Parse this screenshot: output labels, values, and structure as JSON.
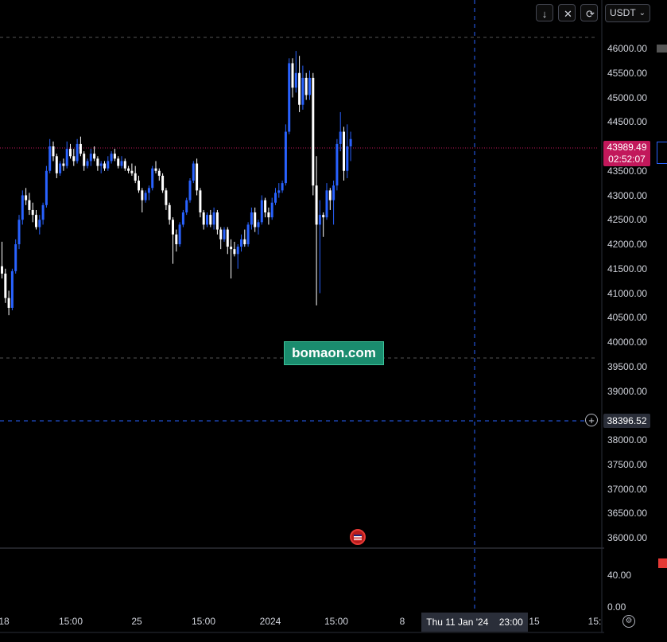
{
  "toolbar": {
    "arrow_down": "↓",
    "collapse": "✕",
    "refresh": "⟳",
    "currency": "USDT",
    "currency_chevron": "⌄"
  },
  "price_axis": {
    "ticks": [
      "46000.00",
      "45500.00",
      "45000.00",
      "44500.00",
      "43500.00",
      "43000.00",
      "42500.00",
      "42000.00",
      "41500.00",
      "41000.00",
      "40500.00",
      "40000.00",
      "39500.00",
      "39000.00",
      "38000.00",
      "37500.00",
      "37000.00",
      "36500.00",
      "36000.00"
    ]
  },
  "indicator_axis": {
    "ticks": [
      "40.00",
      "0.00"
    ]
  },
  "time_axis": {
    "labels": [
      "18",
      "15:00",
      "25",
      "15:00",
      "2024",
      "15:00",
      "8",
      "15",
      "15:"
    ]
  },
  "last_price": {
    "value": "43989.49",
    "countdown": "02:52:07"
  },
  "crosshair": {
    "price": "38396.52",
    "date": "Thu 11 Jan '24",
    "time": "23:00"
  },
  "watermark": "bomaon.com",
  "colors": {
    "up": "#2962ff",
    "down": "#ffffff",
    "last_price": "#c2185b",
    "watermark_bg": "#1a8c6e",
    "crosshair": "#2962ff"
  },
  "chart_data": {
    "type": "candlestick",
    "ylim": [
      35700,
      46700
    ],
    "x_labels": [
      "18",
      "15:00",
      "25",
      "15:00",
      "2024",
      "15:00",
      "8"
    ],
    "candles": [
      [
        41550,
        42050,
        41300,
        41400
      ],
      [
        41400,
        41500,
        40800,
        40900
      ],
      [
        40900,
        41050,
        40550,
        40700
      ],
      [
        40700,
        41500,
        40650,
        41450
      ],
      [
        41450,
        42100,
        41400,
        42000
      ],
      [
        42000,
        42600,
        41900,
        42500
      ],
      [
        42500,
        43100,
        42400,
        43000
      ],
      [
        43000,
        43150,
        42800,
        42900
      ],
      [
        42900,
        43050,
        42600,
        42700
      ],
      [
        42700,
        42850,
        42450,
        42600
      ],
      [
        42600,
        42700,
        42300,
        42350
      ],
      [
        42350,
        42600,
        42200,
        42500
      ],
      [
        42500,
        42850,
        42400,
        42800
      ],
      [
        42800,
        43600,
        42750,
        43500
      ],
      [
        43500,
        44150,
        43450,
        44000
      ],
      [
        44000,
        44100,
        43700,
        43800
      ],
      [
        43800,
        43850,
        43350,
        43450
      ],
      [
        43450,
        43700,
        43400,
        43650
      ],
      [
        43650,
        43750,
        43500,
        43600
      ],
      [
        43600,
        44100,
        43550,
        43950
      ],
      [
        43950,
        44050,
        43750,
        43800
      ],
      [
        43800,
        43950,
        43600,
        43700
      ],
      [
        43700,
        44150,
        43650,
        44050
      ],
      [
        44050,
        44200,
        43800,
        43850
      ],
      [
        43850,
        43900,
        43500,
        43600
      ],
      [
        43600,
        43750,
        43550,
        43700
      ],
      [
        43700,
        43950,
        43600,
        43850
      ],
      [
        43850,
        44000,
        43700,
        43750
      ],
      [
        43750,
        43800,
        43500,
        43600
      ],
      [
        43600,
        43700,
        43450,
        43650
      ],
      [
        43650,
        43700,
        43500,
        43550
      ],
      [
        43550,
        43800,
        43500,
        43700
      ],
      [
        43700,
        43900,
        43650,
        43850
      ],
      [
        43850,
        43950,
        43700,
        43750
      ],
      [
        43750,
        43800,
        43550,
        43600
      ],
      [
        43600,
        43800,
        43550,
        43700
      ],
      [
        43700,
        43750,
        43500,
        43550
      ],
      [
        43550,
        43600,
        43450,
        43500
      ],
      [
        43500,
        43650,
        43400,
        43450
      ],
      [
        43450,
        43600,
        43250,
        43300
      ],
      [
        43300,
        43400,
        43050,
        43100
      ],
      [
        43100,
        43150,
        42650,
        42900
      ],
      [
        42900,
        43100,
        42850,
        43050
      ],
      [
        43050,
        43200,
        42900,
        43150
      ],
      [
        43150,
        43600,
        43100,
        43550
      ],
      [
        43550,
        43700,
        43450,
        43500
      ],
      [
        43500,
        43550,
        43300,
        43400
      ],
      [
        43400,
        43450,
        43050,
        43100
      ],
      [
        43100,
        43150,
        42700,
        42800
      ],
      [
        42800,
        42850,
        42400,
        42500
      ],
      [
        42500,
        42550,
        41600,
        42200
      ],
      [
        42200,
        42300,
        41850,
        42000
      ],
      [
        42000,
        42450,
        41950,
        42400
      ],
      [
        42400,
        42700,
        42350,
        42650
      ],
      [
        42650,
        42950,
        42600,
        42900
      ],
      [
        42900,
        43350,
        42850,
        43300
      ],
      [
        43300,
        43700,
        43250,
        43650
      ],
      [
        43650,
        43750,
        43000,
        43100
      ],
      [
        43100,
        43150,
        42550,
        42650
      ],
      [
        42650,
        42700,
        42300,
        42400
      ],
      [
        42400,
        42650,
        42350,
        42600
      ],
      [
        42600,
        42700,
        42350,
        42400
      ],
      [
        42400,
        42750,
        42300,
        42650
      ],
      [
        42650,
        42700,
        42200,
        42300
      ],
      [
        42300,
        42350,
        41900,
        42100
      ],
      [
        42100,
        42350,
        42050,
        42300
      ],
      [
        42300,
        42350,
        41800,
        41950
      ],
      [
        41950,
        42100,
        41300,
        41900
      ],
      [
        41900,
        42050,
        41750,
        41800
      ],
      [
        41800,
        42000,
        41500,
        41950
      ],
      [
        41950,
        42200,
        41850,
        42100
      ],
      [
        42100,
        42300,
        41950,
        42000
      ],
      [
        42000,
        42450,
        41950,
        42400
      ],
      [
        42400,
        42750,
        42300,
        42650
      ],
      [
        42650,
        42750,
        42250,
        42350
      ],
      [
        42350,
        42500,
        42200,
        42450
      ],
      [
        42450,
        43000,
        42400,
        42900
      ],
      [
        42900,
        42950,
        42550,
        42650
      ],
      [
        42650,
        42750,
        42400,
        42550
      ],
      [
        42550,
        42950,
        42500,
        42850
      ],
      [
        42850,
        43150,
        42800,
        43050
      ],
      [
        43050,
        43250,
        42950,
        43100
      ],
      [
        43100,
        43300,
        43050,
        43250
      ],
      [
        43250,
        44450,
        43200,
        44300
      ],
      [
        44300,
        45800,
        44250,
        45700
      ],
      [
        45700,
        45800,
        45000,
        45200
      ],
      [
        45200,
        45950,
        45100,
        45500
      ],
      [
        45500,
        45850,
        44700,
        44850
      ],
      [
        44850,
        45650,
        44750,
        45400
      ],
      [
        45400,
        45500,
        44950,
        45050
      ],
      [
        45050,
        45550,
        44950,
        45400
      ],
      [
        45400,
        45500,
        43000,
        43200
      ],
      [
        43200,
        43800,
        40750,
        42400
      ],
      [
        42400,
        42900,
        41000,
        42600
      ],
      [
        42600,
        42650,
        42150,
        42550
      ],
      [
        42550,
        43250,
        42500,
        43100
      ],
      [
        43100,
        43150,
        42700,
        42900
      ],
      [
        42900,
        43300,
        42400,
        43200
      ],
      [
        43200,
        44150,
        43100,
        44050
      ],
      [
        44050,
        44700,
        43900,
        44300
      ],
      [
        44300,
        44400,
        43300,
        43500
      ],
      [
        43500,
        44450,
        43350,
        44000
      ],
      [
        44000,
        44300,
        43700,
        44150
      ]
    ]
  }
}
